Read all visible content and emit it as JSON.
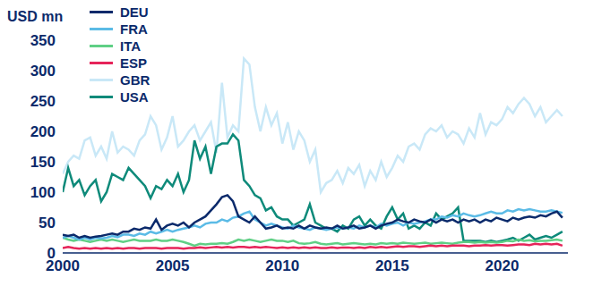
{
  "chart_data": {
    "type": "line",
    "y_label": "USD mn",
    "legend": "top-left",
    "grid": false,
    "x": [
      2000,
      2000.25,
      2000.5,
      2000.75,
      2001,
      2001.25,
      2001.5,
      2001.75,
      2002,
      2002.25,
      2002.5,
      2002.75,
      2003,
      2003.25,
      2003.5,
      2003.75,
      2004,
      2004.25,
      2004.5,
      2004.75,
      2005,
      2005.25,
      2005.5,
      2005.75,
      2006,
      2006.25,
      2006.5,
      2006.75,
      2007,
      2007.25,
      2007.5,
      2007.75,
      2008,
      2008.25,
      2008.5,
      2008.75,
      2009,
      2009.25,
      2009.5,
      2009.75,
      2010,
      2010.25,
      2010.5,
      2010.75,
      2011,
      2011.25,
      2011.5,
      2011.75,
      2012,
      2012.25,
      2012.5,
      2012.75,
      2013,
      2013.25,
      2013.5,
      2013.75,
      2014,
      2014.25,
      2014.5,
      2014.75,
      2015,
      2015.25,
      2015.5,
      2015.75,
      2016,
      2016.25,
      2016.5,
      2016.75,
      2017,
      2017.25,
      2017.5,
      2017.75,
      2018,
      2018.25,
      2018.5,
      2018.75,
      2019,
      2019.25,
      2019.5,
      2019.75,
      2020,
      2020.25,
      2020.5,
      2020.75,
      2021,
      2021.25,
      2021.5,
      2021.75,
      2022,
      2022.25,
      2022.5,
      2022.75
    ],
    "xlim": [
      2000,
      2023
    ],
    "xticks": [
      2000,
      2005,
      2010,
      2015,
      2020
    ],
    "ylim": [
      0,
      350
    ],
    "yticks": [
      0,
      50,
      100,
      150,
      200,
      250,
      300,
      350
    ],
    "series": [
      {
        "name": "DEU",
        "color": "#0b2a6b",
        "values": [
          30,
          28,
          30,
          25,
          28,
          25,
          27,
          28,
          30,
          32,
          30,
          35,
          35,
          40,
          38,
          42,
          40,
          55,
          38,
          45,
          48,
          45,
          50,
          42,
          50,
          55,
          60,
          70,
          80,
          92,
          95,
          85,
          60,
          55,
          50,
          60,
          50,
          40,
          42,
          45,
          40,
          42,
          40,
          45,
          40,
          45,
          42,
          40,
          42,
          40,
          45,
          40,
          42,
          45,
          40,
          42,
          45,
          40,
          45,
          48,
          50,
          55,
          52,
          50,
          55,
          52,
          50,
          55,
          50,
          55,
          52,
          55,
          50,
          55,
          52,
          55,
          50,
          55,
          52,
          58,
          55,
          52,
          58,
          55,
          58,
          60,
          58,
          62,
          60,
          65,
          68,
          58
        ]
      },
      {
        "name": "FRA",
        "color": "#5bbbe6",
        "values": [
          25,
          28,
          25,
          22,
          25,
          22,
          25,
          24,
          25,
          28,
          26,
          30,
          30,
          28,
          32,
          30,
          35,
          32,
          35,
          38,
          35,
          38,
          40,
          42,
          45,
          42,
          48,
          50,
          50,
          55,
          52,
          58,
          60,
          65,
          68,
          55,
          50,
          45,
          48,
          45,
          42,
          40,
          45,
          42,
          40,
          38,
          42,
          40,
          38,
          40,
          42,
          40,
          42,
          40,
          45,
          42,
          45,
          42,
          48,
          45,
          48,
          50,
          45,
          50,
          48,
          50,
          52,
          55,
          55,
          60,
          58,
          62,
          60,
          65,
          62,
          60,
          62,
          65,
          68,
          65,
          65,
          70,
          68,
          72,
          70,
          72,
          70,
          68,
          68,
          70,
          68,
          66
        ]
      },
      {
        "name": "ITA",
        "color": "#5fcf85",
        "values": [
          25,
          22,
          20,
          22,
          20,
          18,
          20,
          22,
          20,
          22,
          20,
          18,
          20,
          22,
          20,
          20,
          20,
          22,
          20,
          20,
          22,
          20,
          18,
          15,
          12,
          15,
          14,
          15,
          15,
          16,
          15,
          18,
          22,
          20,
          22,
          20,
          18,
          20,
          22,
          20,
          20,
          18,
          20,
          16,
          15,
          16,
          18,
          15,
          14,
          15,
          16,
          14,
          15,
          16,
          15,
          14,
          15,
          14,
          16,
          15,
          16,
          15,
          17,
          16,
          15,
          16,
          17,
          15,
          16,
          17,
          16,
          15,
          17,
          18,
          18,
          17,
          18,
          17,
          18,
          17,
          18,
          20,
          19,
          22,
          20,
          21,
          19,
          20,
          20,
          21,
          22,
          20
        ]
      },
      {
        "name": "ESP",
        "color": "#e6245a",
        "values": [
          8,
          10,
          8,
          7,
          8,
          7,
          8,
          7,
          8,
          7,
          8,
          7,
          8,
          8,
          7,
          8,
          8,
          8,
          7,
          8,
          8,
          8,
          7,
          8,
          8,
          9,
          8,
          9,
          10,
          9,
          10,
          9,
          10,
          10,
          9,
          10,
          9,
          10,
          9,
          8,
          9,
          8,
          9,
          8,
          9,
          8,
          9,
          8,
          8,
          9,
          8,
          9,
          9,
          8,
          9,
          8,
          10,
          9,
          10,
          9,
          10,
          11,
          10,
          11,
          11,
          10,
          11,
          12,
          11,
          12,
          11,
          12,
          12,
          12,
          11,
          12,
          12,
          13,
          12,
          13,
          13,
          12,
          13,
          14,
          14,
          13,
          15,
          14,
          15,
          14,
          15,
          12
        ]
      },
      {
        "name": "GBR",
        "color": "#c9e8f7",
        "values": [
          130,
          150,
          160,
          155,
          185,
          190,
          160,
          175,
          155,
          200,
          165,
          175,
          170,
          160,
          185,
          195,
          225,
          210,
          170,
          190,
          225,
          175,
          185,
          200,
          210,
          185,
          200,
          215,
          165,
          280,
          190,
          210,
          200,
          320,
          310,
          240,
          200,
          240,
          210,
          230,
          180,
          215,
          170,
          200,
          185,
          150,
          170,
          100,
          115,
          120,
          135,
          115,
          140,
          130,
          145,
          110,
          135,
          120,
          150,
          125,
          140,
          160,
          150,
          175,
          180,
          170,
          195,
          205,
          200,
          210,
          190,
          200,
          195,
          180,
          205,
          190,
          230,
          195,
          215,
          210,
          220,
          240,
          230,
          245,
          255,
          245,
          225,
          240,
          215,
          225,
          235,
          225
        ]
      },
      {
        "name": "USA",
        "color": "#0e8a7a",
        "values": [
          100,
          140,
          110,
          120,
          95,
          110,
          120,
          85,
          100,
          130,
          125,
          120,
          140,
          130,
          120,
          110,
          90,
          110,
          105,
          120,
          110,
          130,
          100,
          120,
          185,
          155,
          175,
          130,
          175,
          180,
          180,
          195,
          185,
          120,
          110,
          95,
          90,
          70,
          75,
          60,
          55,
          55,
          45,
          50,
          55,
          80,
          50,
          45,
          40,
          40,
          35,
          45,
          40,
          55,
          60,
          45,
          55,
          45,
          40,
          60,
          75,
          55,
          65,
          40,
          45,
          40,
          50,
          45,
          65,
          55,
          60,
          65,
          75,
          20,
          20,
          20,
          20,
          18,
          20,
          18,
          20,
          22,
          25,
          20,
          25,
          30,
          22,
          25,
          28,
          25,
          30,
          35
        ]
      }
    ]
  }
}
